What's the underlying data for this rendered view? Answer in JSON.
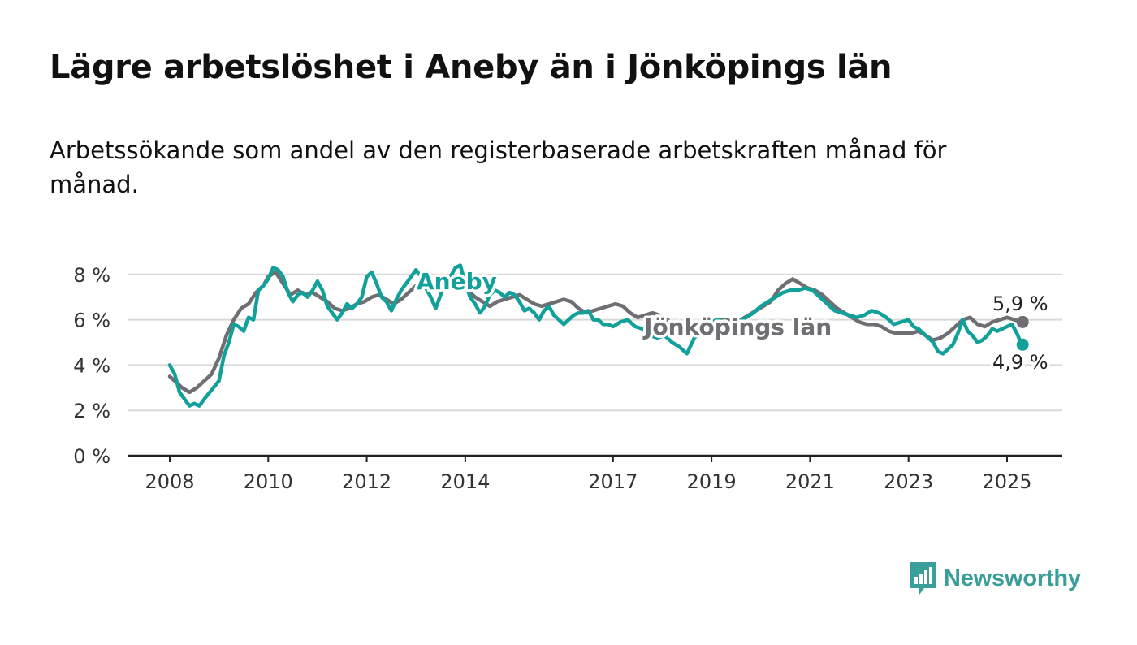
{
  "title": "Lägre arbetslöshet i Aneby än i Jönköpings län",
  "subtitle": "Arbetssökande som andel av den registerbaserade arbetskraften månad för månad.",
  "brand": {
    "name": "Newsworthy",
    "color": "#3a9e9a"
  },
  "chart_data": {
    "type": "line",
    "x_range": [
      2008.0,
      2026.0
    ],
    "ylim": [
      0,
      8.5
    ],
    "y_ticks": [
      {
        "value": 0,
        "label": "0 %"
      },
      {
        "value": 2,
        "label": "2 %"
      },
      {
        "value": 4,
        "label": "4 %"
      },
      {
        "value": 6,
        "label": "6 %"
      },
      {
        "value": 8,
        "label": "8 %"
      }
    ],
    "x_ticks": [
      {
        "value": 2008,
        "label": "2008"
      },
      {
        "value": 2010,
        "label": "2010"
      },
      {
        "value": 2012,
        "label": "2012"
      },
      {
        "value": 2014,
        "label": "2014"
      },
      {
        "value": 2017,
        "label": "2017"
      },
      {
        "value": 2019,
        "label": "2019"
      },
      {
        "value": 2021,
        "label": "2021"
      },
      {
        "value": 2023,
        "label": "2023"
      },
      {
        "value": 2025,
        "label": "2025"
      }
    ],
    "grid": true,
    "series": [
      {
        "name": "Jönköpings län",
        "color": "#6e6e73",
        "end_label": "5,9 %",
        "points": [
          [
            2008.0,
            3.5
          ],
          [
            2008.1,
            3.3
          ],
          [
            2008.25,
            3.0
          ],
          [
            2008.4,
            2.8
          ],
          [
            2008.55,
            3.0
          ],
          [
            2008.7,
            3.3
          ],
          [
            2008.85,
            3.6
          ],
          [
            2009.0,
            4.3
          ],
          [
            2009.15,
            5.3
          ],
          [
            2009.3,
            6.0
          ],
          [
            2009.45,
            6.5
          ],
          [
            2009.6,
            6.7
          ],
          [
            2009.75,
            7.2
          ],
          [
            2009.9,
            7.5
          ],
          [
            2010.0,
            7.9
          ],
          [
            2010.15,
            8.1
          ],
          [
            2010.3,
            7.6
          ],
          [
            2010.45,
            7.1
          ],
          [
            2010.6,
            7.3
          ],
          [
            2010.75,
            7.1
          ],
          [
            2010.9,
            7.2
          ],
          [
            2011.05,
            7.0
          ],
          [
            2011.2,
            6.8
          ],
          [
            2011.35,
            6.5
          ],
          [
            2011.5,
            6.4
          ],
          [
            2011.65,
            6.5
          ],
          [
            2011.8,
            6.7
          ],
          [
            2011.95,
            6.8
          ],
          [
            2012.1,
            7.0
          ],
          [
            2012.25,
            7.1
          ],
          [
            2012.4,
            6.9
          ],
          [
            2012.55,
            6.7
          ],
          [
            2012.7,
            6.9
          ],
          [
            2012.85,
            7.2
          ],
          [
            2013.0,
            7.5
          ],
          [
            2013.15,
            7.6
          ],
          [
            2013.3,
            7.4
          ],
          [
            2013.45,
            7.3
          ],
          [
            2013.6,
            7.5
          ],
          [
            2013.75,
            7.6
          ],
          [
            2013.9,
            7.4
          ],
          [
            2014.05,
            7.3
          ],
          [
            2014.2,
            7.0
          ],
          [
            2014.35,
            6.8
          ],
          [
            2014.5,
            6.6
          ],
          [
            2014.65,
            6.8
          ],
          [
            2014.8,
            6.9
          ],
          [
            2014.95,
            7.0
          ],
          [
            2015.1,
            7.1
          ],
          [
            2015.25,
            6.9
          ],
          [
            2015.4,
            6.7
          ],
          [
            2015.55,
            6.6
          ],
          [
            2015.7,
            6.7
          ],
          [
            2015.85,
            6.8
          ],
          [
            2016.0,
            6.9
          ],
          [
            2016.15,
            6.8
          ],
          [
            2016.3,
            6.5
          ],
          [
            2016.45,
            6.3
          ],
          [
            2016.6,
            6.4
          ],
          [
            2016.75,
            6.5
          ],
          [
            2016.9,
            6.6
          ],
          [
            2017.05,
            6.7
          ],
          [
            2017.2,
            6.6
          ],
          [
            2017.35,
            6.3
          ],
          [
            2017.5,
            6.1
          ],
          [
            2017.65,
            6.2
          ],
          [
            2017.8,
            6.3
          ],
          [
            2017.95,
            6.2
          ],
          [
            2018.1,
            6.0
          ],
          [
            2018.25,
            5.8
          ],
          [
            2018.4,
            5.7
          ],
          [
            2018.55,
            5.6
          ],
          [
            2018.7,
            5.7
          ],
          [
            2018.85,
            5.8
          ],
          [
            2019.0,
            5.9
          ],
          [
            2019.15,
            6.0
          ],
          [
            2019.3,
            6.0
          ],
          [
            2019.45,
            5.9
          ],
          [
            2019.6,
            6.0
          ],
          [
            2019.75,
            6.2
          ],
          [
            2019.9,
            6.4
          ],
          [
            2020.05,
            6.6
          ],
          [
            2020.2,
            6.8
          ],
          [
            2020.35,
            7.3
          ],
          [
            2020.5,
            7.6
          ],
          [
            2020.65,
            7.8
          ],
          [
            2020.8,
            7.6
          ],
          [
            2020.95,
            7.4
          ],
          [
            2021.1,
            7.3
          ],
          [
            2021.25,
            7.1
          ],
          [
            2021.4,
            6.8
          ],
          [
            2021.55,
            6.5
          ],
          [
            2021.7,
            6.3
          ],
          [
            2021.85,
            6.1
          ],
          [
            2022.0,
            5.9
          ],
          [
            2022.15,
            5.8
          ],
          [
            2022.3,
            5.8
          ],
          [
            2022.45,
            5.7
          ],
          [
            2022.6,
            5.5
          ],
          [
            2022.75,
            5.4
          ],
          [
            2022.9,
            5.4
          ],
          [
            2023.05,
            5.4
          ],
          [
            2023.2,
            5.5
          ],
          [
            2023.35,
            5.3
          ],
          [
            2023.5,
            5.1
          ],
          [
            2023.65,
            5.2
          ],
          [
            2023.8,
            5.4
          ],
          [
            2023.95,
            5.7
          ],
          [
            2024.1,
            6.0
          ],
          [
            2024.25,
            6.1
          ],
          [
            2024.4,
            5.8
          ],
          [
            2024.55,
            5.7
          ],
          [
            2024.7,
            5.9
          ],
          [
            2024.85,
            6.0
          ],
          [
            2025.0,
            6.1
          ],
          [
            2025.15,
            6.0
          ],
          [
            2025.3,
            5.9
          ]
        ]
      },
      {
        "name": "Aneby",
        "color": "#12a19a",
        "end_label": "4,9 %",
        "points": [
          [
            2008.0,
            4.0
          ],
          [
            2008.1,
            3.6
          ],
          [
            2008.2,
            2.8
          ],
          [
            2008.3,
            2.5
          ],
          [
            2008.4,
            2.2
          ],
          [
            2008.5,
            2.3
          ],
          [
            2008.6,
            2.2
          ],
          [
            2008.7,
            2.5
          ],
          [
            2008.85,
            2.9
          ],
          [
            2009.0,
            3.3
          ],
          [
            2009.1,
            4.4
          ],
          [
            2009.2,
            5.0
          ],
          [
            2009.3,
            5.8
          ],
          [
            2009.4,
            5.7
          ],
          [
            2009.5,
            5.5
          ],
          [
            2009.6,
            6.1
          ],
          [
            2009.7,
            6.0
          ],
          [
            2009.8,
            7.3
          ],
          [
            2009.9,
            7.5
          ],
          [
            2010.0,
            7.8
          ],
          [
            2010.1,
            8.3
          ],
          [
            2010.2,
            8.2
          ],
          [
            2010.3,
            7.9
          ],
          [
            2010.4,
            7.2
          ],
          [
            2010.5,
            6.8
          ],
          [
            2010.6,
            7.1
          ],
          [
            2010.7,
            7.2
          ],
          [
            2010.8,
            7.0
          ],
          [
            2010.9,
            7.3
          ],
          [
            2011.0,
            7.7
          ],
          [
            2011.1,
            7.3
          ],
          [
            2011.2,
            6.6
          ],
          [
            2011.3,
            6.3
          ],
          [
            2011.4,
            6.0
          ],
          [
            2011.5,
            6.3
          ],
          [
            2011.6,
            6.7
          ],
          [
            2011.7,
            6.5
          ],
          [
            2011.8,
            6.7
          ],
          [
            2011.9,
            7.0
          ],
          [
            2012.0,
            7.9
          ],
          [
            2012.1,
            8.1
          ],
          [
            2012.2,
            7.6
          ],
          [
            2012.3,
            7.0
          ],
          [
            2012.4,
            6.8
          ],
          [
            2012.5,
            6.4
          ],
          [
            2012.6,
            6.9
          ],
          [
            2012.7,
            7.3
          ],
          [
            2012.8,
            7.6
          ],
          [
            2012.9,
            7.9
          ],
          [
            2013.0,
            8.2
          ],
          [
            2013.1,
            7.9
          ],
          [
            2013.2,
            7.4
          ],
          [
            2013.3,
            7.0
          ],
          [
            2013.4,
            6.5
          ],
          [
            2013.5,
            7.1
          ],
          [
            2013.6,
            7.6
          ],
          [
            2013.7,
            7.9
          ],
          [
            2013.8,
            8.3
          ],
          [
            2013.9,
            8.4
          ],
          [
            2014.0,
            7.6
          ],
          [
            2014.1,
            7.0
          ],
          [
            2014.2,
            6.7
          ],
          [
            2014.3,
            6.3
          ],
          [
            2014.4,
            6.6
          ],
          [
            2014.5,
            7.1
          ],
          [
            2014.6,
            7.3
          ],
          [
            2014.7,
            7.2
          ],
          [
            2014.8,
            7.0
          ],
          [
            2014.9,
            7.2
          ],
          [
            2015.0,
            7.1
          ],
          [
            2015.1,
            6.8
          ],
          [
            2015.2,
            6.4
          ],
          [
            2015.3,
            6.5
          ],
          [
            2015.4,
            6.3
          ],
          [
            2015.5,
            6.0
          ],
          [
            2015.6,
            6.4
          ],
          [
            2015.7,
            6.6
          ],
          [
            2015.8,
            6.2
          ],
          [
            2015.9,
            6.0
          ],
          [
            2016.0,
            5.8
          ],
          [
            2016.1,
            6.0
          ],
          [
            2016.2,
            6.2
          ],
          [
            2016.3,
            6.3
          ],
          [
            2016.4,
            6.3
          ],
          [
            2016.5,
            6.4
          ],
          [
            2016.6,
            6.0
          ],
          [
            2016.7,
            6.0
          ],
          [
            2016.8,
            5.8
          ],
          [
            2016.9,
            5.8
          ],
          [
            2017.0,
            5.7
          ],
          [
            2017.15,
            5.9
          ],
          [
            2017.3,
            6.0
          ],
          [
            2017.45,
            5.7
          ],
          [
            2017.6,
            5.6
          ],
          [
            2017.75,
            5.3
          ],
          [
            2017.9,
            5.2
          ],
          [
            2018.05,
            5.3
          ],
          [
            2018.2,
            5.0
          ],
          [
            2018.35,
            4.8
          ],
          [
            2018.5,
            4.5
          ],
          [
            2018.65,
            5.2
          ],
          [
            2018.8,
            5.5
          ],
          [
            2018.95,
            5.8
          ],
          [
            2019.1,
            6.0
          ],
          [
            2019.25,
            5.9
          ],
          [
            2019.4,
            5.8
          ],
          [
            2019.55,
            5.9
          ],
          [
            2019.7,
            6.1
          ],
          [
            2019.85,
            6.3
          ],
          [
            2020.0,
            6.6
          ],
          [
            2020.15,
            6.8
          ],
          [
            2020.3,
            7.0
          ],
          [
            2020.45,
            7.2
          ],
          [
            2020.6,
            7.3
          ],
          [
            2020.75,
            7.3
          ],
          [
            2020.9,
            7.4
          ],
          [
            2021.05,
            7.3
          ],
          [
            2021.2,
            7.0
          ],
          [
            2021.35,
            6.7
          ],
          [
            2021.5,
            6.4
          ],
          [
            2021.65,
            6.3
          ],
          [
            2021.8,
            6.2
          ],
          [
            2021.95,
            6.1
          ],
          [
            2022.1,
            6.2
          ],
          [
            2022.25,
            6.4
          ],
          [
            2022.4,
            6.3
          ],
          [
            2022.55,
            6.1
          ],
          [
            2022.7,
            5.8
          ],
          [
            2022.85,
            5.9
          ],
          [
            2023.0,
            6.0
          ],
          [
            2023.1,
            5.7
          ],
          [
            2023.2,
            5.6
          ],
          [
            2023.3,
            5.4
          ],
          [
            2023.4,
            5.2
          ],
          [
            2023.5,
            5.0
          ],
          [
            2023.6,
            4.6
          ],
          [
            2023.7,
            4.5
          ],
          [
            2023.8,
            4.7
          ],
          [
            2023.9,
            4.9
          ],
          [
            2024.0,
            5.4
          ],
          [
            2024.1,
            6.0
          ],
          [
            2024.2,
            5.5
          ],
          [
            2024.3,
            5.3
          ],
          [
            2024.4,
            5.0
          ],
          [
            2024.5,
            5.1
          ],
          [
            2024.6,
            5.3
          ],
          [
            2024.7,
            5.6
          ],
          [
            2024.8,
            5.5
          ],
          [
            2024.9,
            5.6
          ],
          [
            2025.0,
            5.7
          ],
          [
            2025.1,
            5.8
          ],
          [
            2025.2,
            5.4
          ],
          [
            2025.3,
            4.9
          ]
        ]
      }
    ]
  }
}
